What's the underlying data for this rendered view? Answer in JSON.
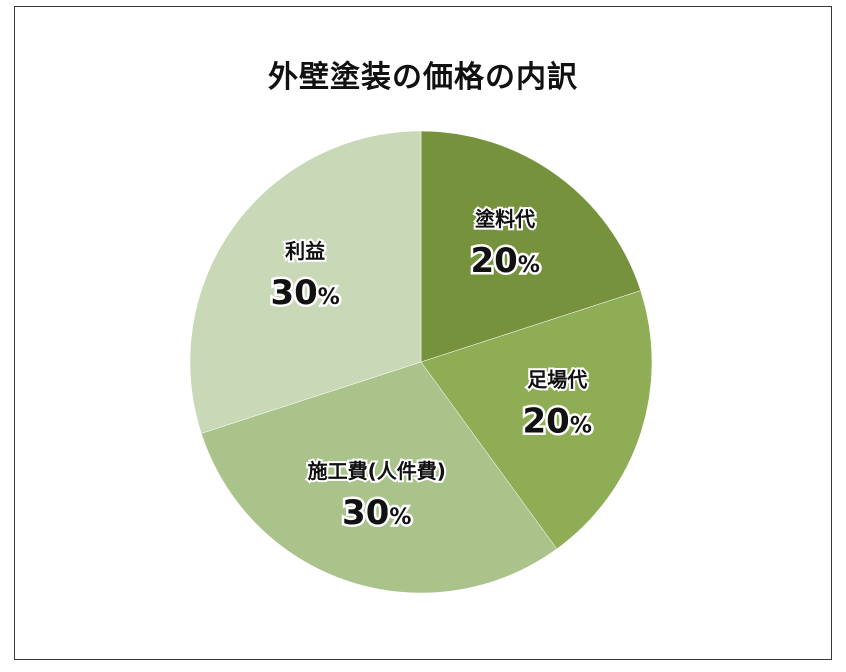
{
  "chart_data": {
    "type": "pie",
    "title": "外壁塗装の価格の内訳",
    "unit": "%",
    "slices": [
      {
        "label": "塗料代",
        "value": 20,
        "display": "20",
        "color": "#76923c"
      },
      {
        "label": "足場代",
        "value": 20,
        "display": "20",
        "color": "#8ead55"
      },
      {
        "label": "施工費(人件費)",
        "value": 30,
        "display": "30",
        "color": "#a9c38a"
      },
      {
        "label": "利益",
        "value": 30,
        "display": "30",
        "color": "#c9d8b6"
      }
    ]
  }
}
